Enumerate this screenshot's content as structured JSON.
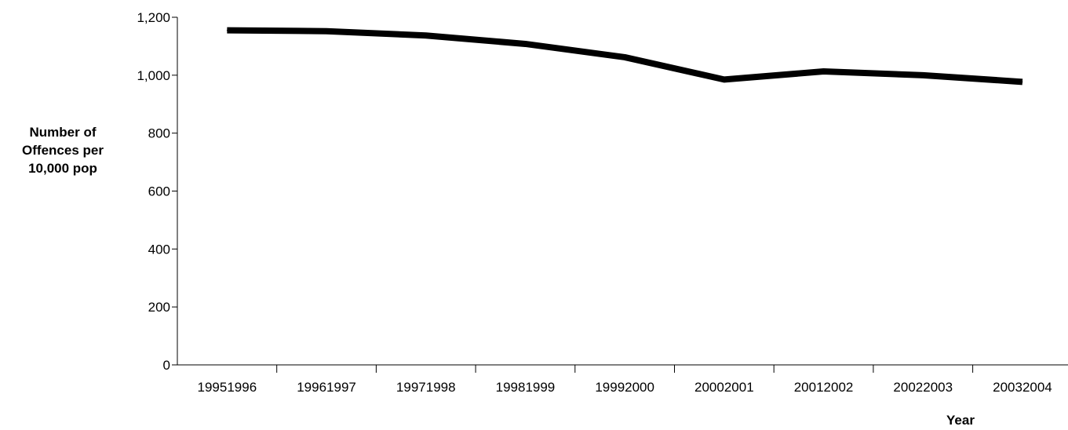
{
  "chart_data": {
    "type": "line",
    "title": "",
    "ylabel_lines": [
      "Number of",
      "Offences per",
      "10,000 pop"
    ],
    "xlabel": "Year",
    "categories": [
      "19951996",
      "19961997",
      "19971998",
      "19981999",
      "19992000",
      "20002001",
      "20012002",
      "20022003",
      "20032004"
    ],
    "series": [
      {
        "values": [
          1155,
          1152,
          1137,
          1108,
          1062,
          985,
          1013,
          1000,
          977
        ],
        "color": "#000000"
      }
    ],
    "ylim": [
      0,
      1200
    ],
    "yticks": [
      0,
      200,
      400,
      600,
      800,
      1000,
      1200
    ],
    "ytick_labels": [
      "0",
      "200",
      "400",
      "600",
      "800",
      "1,000",
      "1,200"
    ],
    "grid": false,
    "legend": "none"
  }
}
